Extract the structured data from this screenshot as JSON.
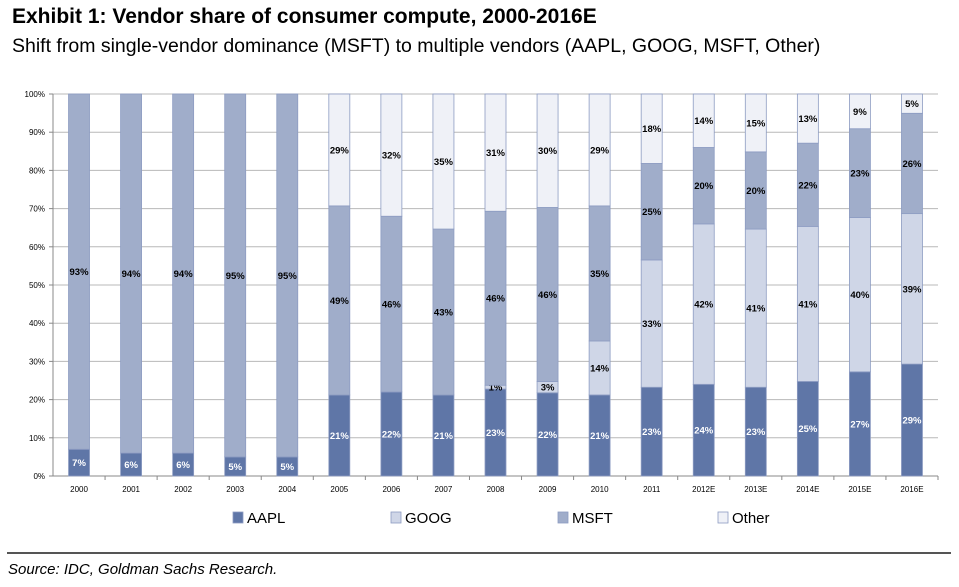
{
  "chart_data": {
    "type": "bar",
    "stacked": true,
    "percent_stacked": true,
    "title": "Exhibit 1: Vendor share of consumer compute, 2000-2016E",
    "subtitle": "Shift from single-vendor dominance (MSFT) to multiple vendors (AAPL, GOOG, MSFT, Other)",
    "xlabel": "",
    "ylabel": "",
    "ylim": [
      0,
      100
    ],
    "yticks": [
      "0%",
      "10%",
      "20%",
      "30%",
      "40%",
      "50%",
      "60%",
      "70%",
      "80%",
      "90%",
      "100%"
    ],
    "grid": true,
    "legend": "bottom",
    "categories": [
      "2000",
      "2001",
      "2002",
      "2003",
      "2004",
      "2005",
      "2006",
      "2007",
      "2008",
      "2009",
      "2010",
      "2011",
      "2012E",
      "2013E",
      "2014E",
      "2015E",
      "2016E"
    ],
    "series": [
      {
        "name": "AAPL",
        "color": "#5f76a7",
        "label_color": "#ffffff",
        "values": [
          7,
          6,
          6,
          5,
          5,
          21,
          22,
          21,
          23,
          22,
          21,
          23,
          24,
          23,
          25,
          27,
          29
        ]
      },
      {
        "name": "GOOG",
        "color": "#cfd6e7",
        "label_color": "#000000",
        "values": [
          0,
          0,
          0,
          0,
          0,
          0,
          0,
          0,
          1,
          3,
          14,
          33,
          42,
          41,
          41,
          40,
          39
        ]
      },
      {
        "name": "MSFT",
        "color": "#a0adca",
        "label_color": "#000000",
        "values": [
          93,
          94,
          94,
          95,
          95,
          49,
          46,
          43,
          46,
          46,
          35,
          25,
          20,
          20,
          22,
          23,
          26
        ]
      },
      {
        "name": "Other",
        "color": "#eff1f7",
        "label_color": "#000000",
        "values": [
          0,
          0,
          0,
          0,
          0,
          29,
          32,
          35,
          31,
          30,
          29,
          18,
          14,
          15,
          13,
          9,
          5
        ]
      }
    ]
  },
  "source": "Source: IDC, Goldman Sachs Research."
}
